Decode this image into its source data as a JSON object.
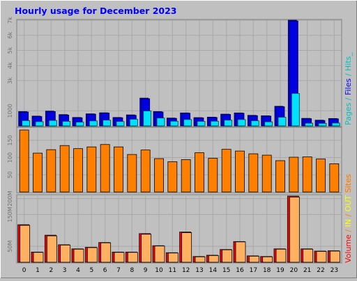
{
  "title": "Hourly usage for December 2023",
  "right_labels": {
    "top": [
      {
        "text": "Pages",
        "color": "#00c0c0"
      },
      {
        "text": " / ",
        "color": "#00c0c0"
      },
      {
        "text": "Files",
        "color": "#0000ff"
      },
      {
        "text": " / ",
        "color": "#00c0c0"
      },
      {
        "text": "Hits_",
        "color": "#00c0c0"
      }
    ],
    "middle": [
      {
        "text": "Sites",
        "color": "#ff8000"
      }
    ],
    "bottom": [
      {
        "text": "Volume",
        "color": "#ff0000"
      },
      {
        "text": " / ",
        "color": "#ff8000"
      },
      {
        "text": "IN",
        "color": "#ffff00"
      },
      {
        "text": " / ",
        "color": "#ff8000"
      },
      {
        "text": "OUT",
        "color": "#ffff00"
      },
      {
        "text": " ",
        "color": "#ff8000"
      },
      {
        "text": "Sites",
        "color": "#ff8000"
      }
    ]
  },
  "colors": {
    "background": "#c0c0c0",
    "title": "#0000ff",
    "hits": "#00c0c0",
    "files": "#0000ff",
    "pages": "#00e0ff",
    "sites": "#ff8000",
    "volume": "#ff0000",
    "volume_out": "#ffb060"
  },
  "chart_data": [
    {
      "type": "bar",
      "x": [
        0,
        1,
        2,
        3,
        4,
        5,
        6,
        7,
        8,
        9,
        10,
        11,
        12,
        13,
        14,
        15,
        16,
        17,
        18,
        19,
        20,
        21,
        22,
        23
      ],
      "ylabel": "Pages / Files / Hits_",
      "y_ticks": [
        {
          "value": 1000,
          "label": "1000"
        },
        {
          "value": 3000,
          "label": "3k"
        },
        {
          "value": 4000,
          "label": "4k"
        },
        {
          "value": 5000,
          "label": "5k"
        },
        {
          "value": 6000,
          "label": "6k"
        },
        {
          "value": 7000,
          "label": "7k"
        }
      ],
      "ylim": [
        0,
        7050
      ],
      "series": [
        {
          "name": "Hits",
          "values": [
            950,
            650,
            980,
            750,
            560,
            800,
            870,
            560,
            730,
            1840,
            950,
            520,
            860,
            550,
            580,
            780,
            860,
            700,
            670,
            1300,
            7000,
            500,
            380,
            490
          ]
        },
        {
          "name": "Files",
          "values": [
            920,
            620,
            950,
            720,
            540,
            780,
            850,
            540,
            700,
            1800,
            920,
            500,
            840,
            530,
            560,
            760,
            840,
            680,
            650,
            1270,
            6950,
            480,
            360,
            470
          ]
        },
        {
          "name": "Pages",
          "values": [
            350,
            280,
            360,
            300,
            250,
            330,
            380,
            290,
            440,
            990,
            520,
            310,
            420,
            300,
            310,
            380,
            420,
            340,
            270,
            570,
            2150,
            180,
            170,
            190
          ]
        }
      ]
    },
    {
      "type": "bar",
      "x": [
        0,
        1,
        2,
        3,
        4,
        5,
        6,
        7,
        8,
        9,
        10,
        11,
        12,
        13,
        14,
        15,
        16,
        17,
        18,
        19,
        20,
        21,
        22,
        23
      ],
      "ylabel": "Sites",
      "y_ticks": [
        {
          "value": 50,
          "label": "50"
        },
        {
          "value": 100,
          "label": "100"
        },
        {
          "value": 150,
          "label": "150"
        }
      ],
      "ylim": [
        0,
        186
      ],
      "series": [
        {
          "name": "Sites",
          "values": [
            180,
            113,
            123,
            135,
            126,
            131,
            138,
            131,
            109,
            122,
            97,
            88,
            94,
            114,
            98,
            124,
            119,
            111,
            107,
            91,
            101,
            102,
            96,
            82
          ]
        }
      ]
    },
    {
      "type": "bar",
      "x": [
        0,
        1,
        2,
        3,
        4,
        5,
        6,
        7,
        8,
        9,
        10,
        11,
        12,
        13,
        14,
        15,
        16,
        17,
        18,
        19,
        20,
        21,
        22,
        23
      ],
      "ylabel": "Volume / IN / OUT",
      "y_ticks": [
        {
          "value": 50,
          "label": "50M"
        },
        {
          "value": 150,
          "label": "150M"
        },
        {
          "value": 200,
          "label": "200M"
        }
      ],
      "ylim": [
        0,
        210
      ],
      "series": [
        {
          "name": "Volume",
          "values": [
            118,
            32,
            85,
            55,
            42,
            47,
            62,
            32,
            32,
            90,
            52,
            30,
            95,
            18,
            22,
            40,
            65,
            20,
            18,
            42,
            208,
            42,
            35,
            36
          ]
        },
        {
          "name": "OUT",
          "values": [
            116,
            31,
            83,
            54,
            41,
            46,
            61,
            31,
            31,
            88,
            51,
            29,
            93,
            17,
            21,
            39,
            64,
            19,
            17,
            41,
            205,
            41,
            34,
            35
          ]
        }
      ]
    }
  ]
}
